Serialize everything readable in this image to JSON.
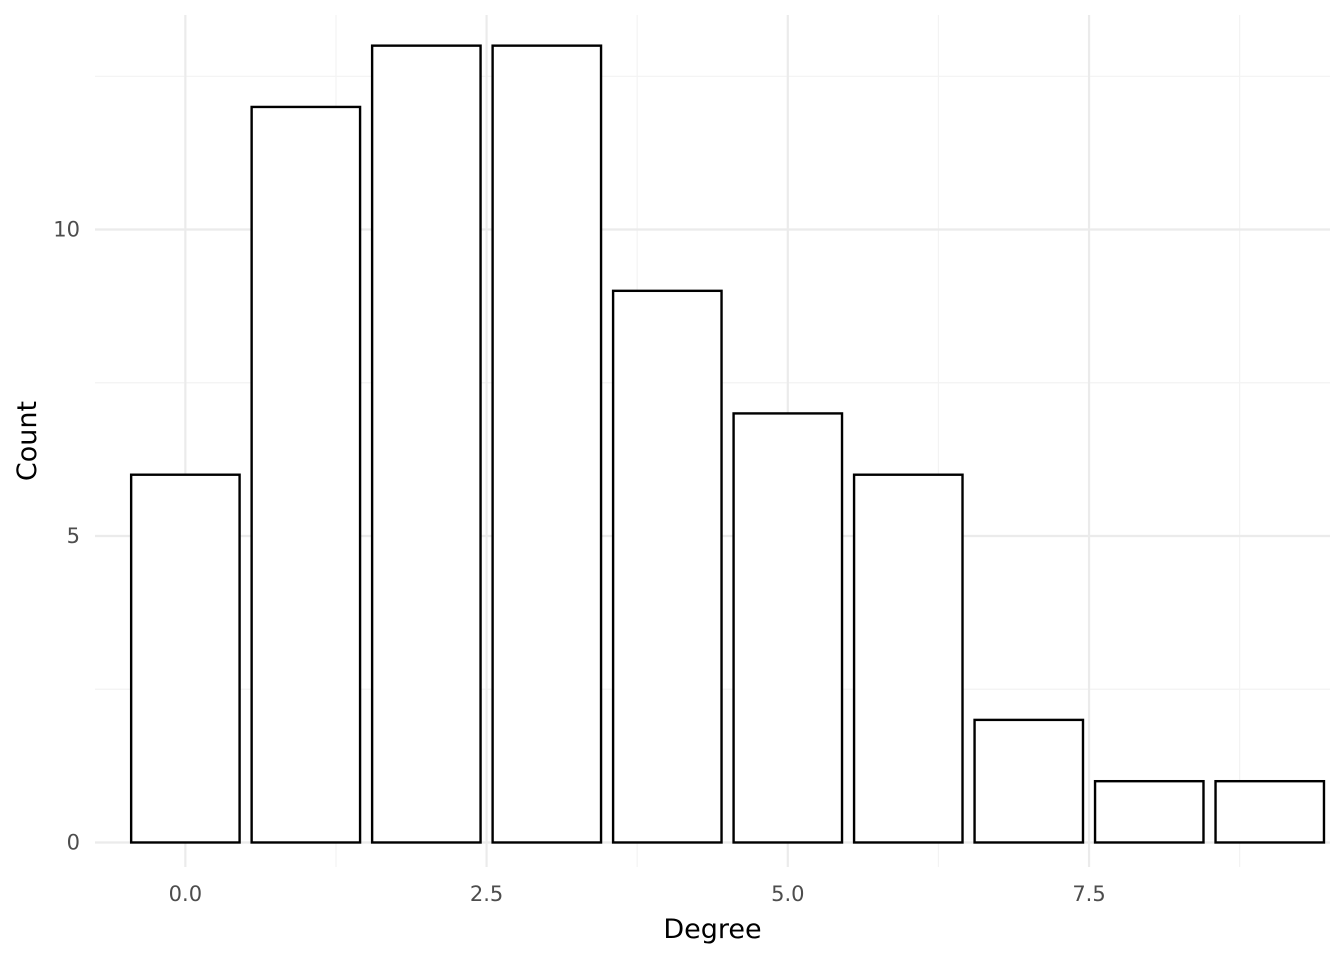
{
  "chart_data": {
    "type": "bar",
    "title": "",
    "xlabel": "Degree",
    "ylabel": "Count",
    "x": [
      0,
      1,
      2,
      3,
      4,
      5,
      6,
      7,
      8,
      9
    ],
    "values": [
      6,
      12,
      13,
      13,
      9,
      7,
      6,
      2,
      1,
      1
    ],
    "xlim": [
      -0.75,
      9.5
    ],
    "ylim": [
      -0.4,
      13.5
    ],
    "x_ticks": [
      0,
      2.5,
      5,
      7.5
    ],
    "x_tick_labels": [
      "0.0",
      "2.5",
      "5.0",
      "7.5"
    ],
    "y_ticks": [
      0,
      5,
      10
    ],
    "y_tick_labels": [
      "0",
      "5",
      "10"
    ],
    "grid": true,
    "bar_fill": "#ffffff",
    "bar_outline": "#000000",
    "grid_color": "#ebebeb"
  }
}
